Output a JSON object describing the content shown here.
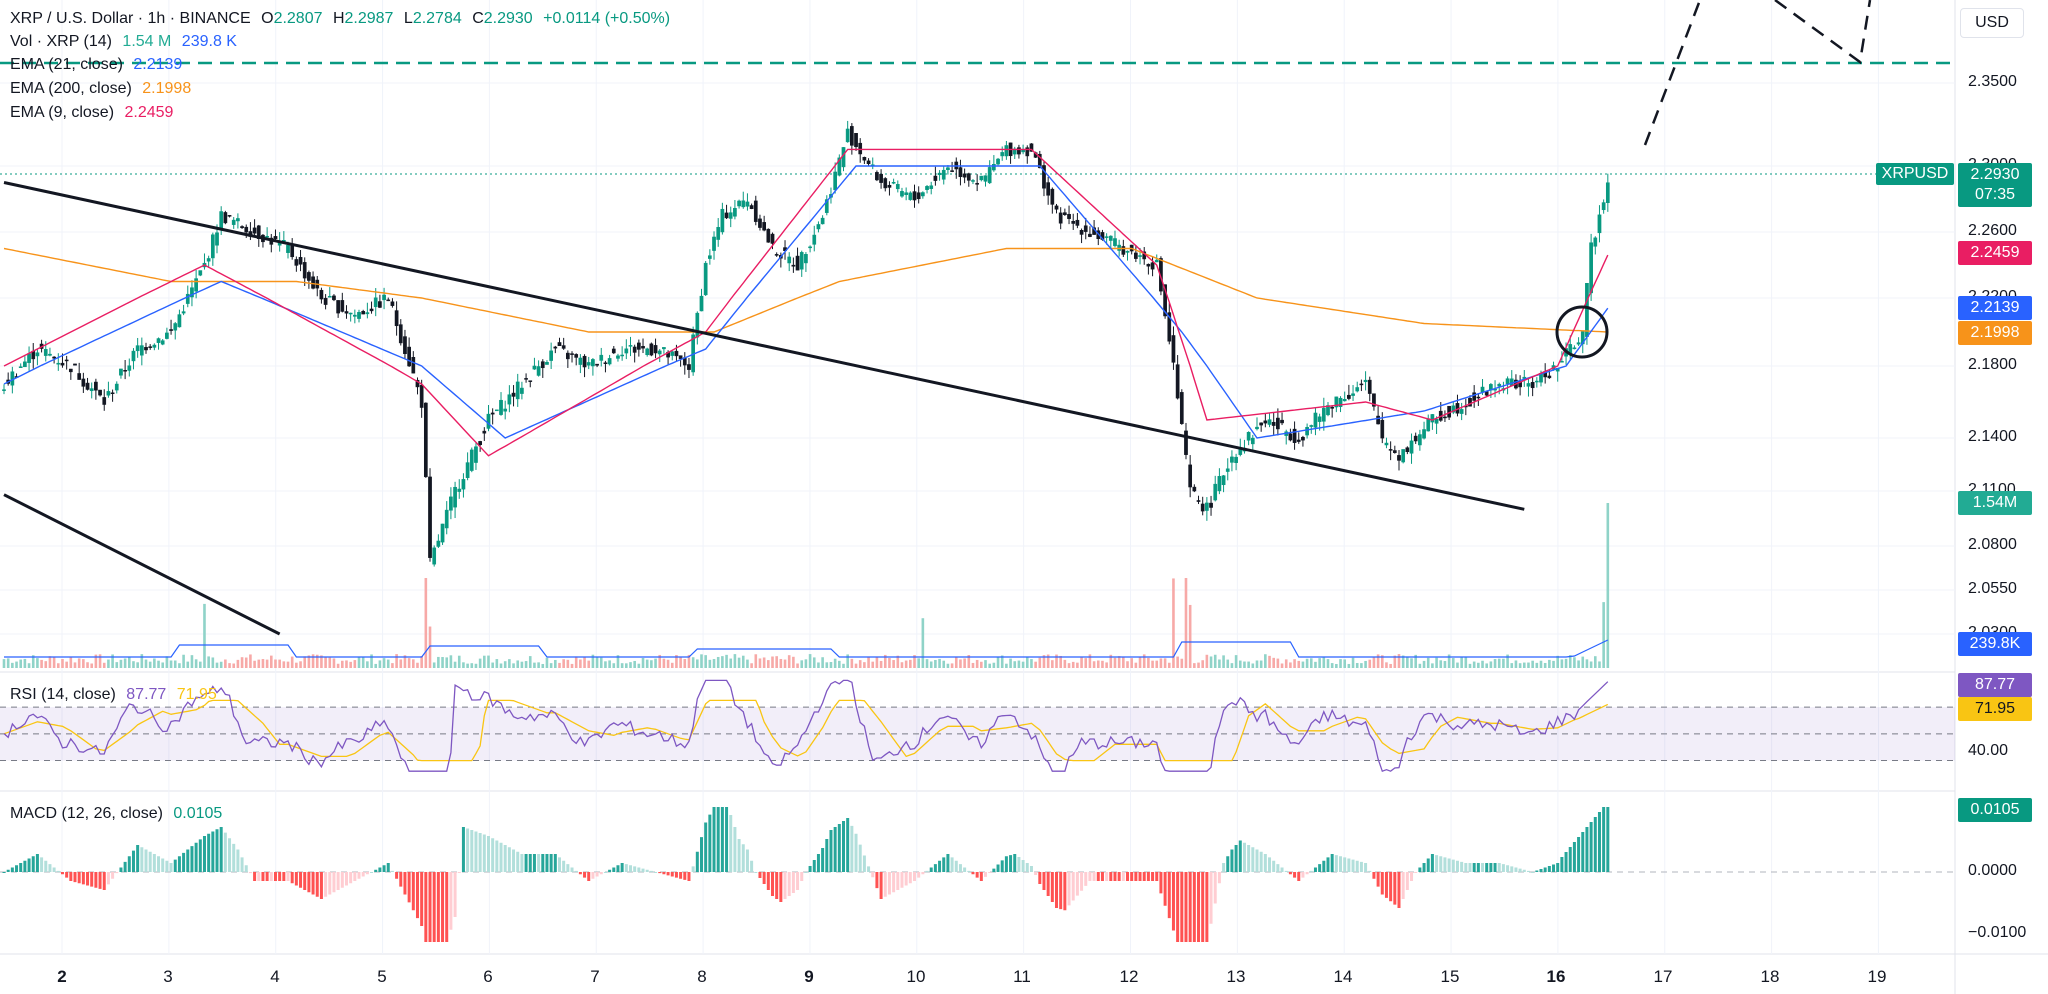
{
  "header": {
    "symbol_title": "XRP / U.S. Dollar · 1h · BINANCE",
    "o_label": "O",
    "o_value": "2.2807",
    "h_label": "H",
    "h_value": "2.2987",
    "l_label": "L",
    "l_value": "2.2784",
    "c_label": "C",
    "c_value": "2.2930",
    "change": "+0.0114 (+0.50%)"
  },
  "indicators": [
    {
      "label": "Vol · XRP (14)",
      "value1": "1.54 M",
      "value2": "239.8 K",
      "color1": "#22ab94",
      "color2": "#2962ff"
    },
    {
      "label": "EMA (21, close)",
      "value": "2.2139",
      "color": "#2962ff"
    },
    {
      "label": "EMA (200, close)",
      "value": "2.1998",
      "color": "#f7931a"
    },
    {
      "label": "EMA (9, close)",
      "value": "2.2459",
      "color": "#e91e63"
    }
  ],
  "rsi": {
    "label": "RSI (14, close)",
    "value": "87.77",
    "ma": "71.95",
    "color": "#7e57c2",
    "ma_color": "#f9c513"
  },
  "macd": {
    "label": "MACD (12, 26, close)",
    "value": "0.0105",
    "color": "#089981"
  },
  "currency": "USD",
  "ticker": "XRPUSD",
  "price_axis": [
    "2.3500",
    "2.3000",
    "2.2600",
    "2.2200",
    "2.1800",
    "2.1400",
    "2.1100",
    "2.0800",
    "2.0550",
    "2.0300"
  ],
  "price_badges": {
    "last": "2.2930",
    "countdown": "07:35",
    "ema9": "2.2459",
    "ema21": "2.2139",
    "ema200": "2.1998",
    "vol": "1.54M",
    "vol_ma": "239.8K"
  },
  "rsi_axis": {
    "upper_badge": "87.77",
    "ma_badge": "71.95",
    "level": "40.00"
  },
  "macd_axis": {
    "badge": "0.0105",
    "zero": "0.0000",
    "neg": "−0.0100"
  },
  "time_axis": [
    "2",
    "3",
    "4",
    "5",
    "6",
    "7",
    "8",
    "9",
    "10",
    "11",
    "12",
    "13",
    "14",
    "15",
    "16",
    "17",
    "18",
    "19"
  ],
  "time_axis_bold": [
    "2",
    "9",
    "16"
  ],
  "colors": {
    "up": "#089981",
    "down": "#f23645",
    "ema9": "#e91e63",
    "ema21": "#2962ff",
    "ema200": "#f7931a",
    "resistance": "#089981"
  },
  "chart_data": {
    "type": "candlestick",
    "title": "XRP / U.S. Dollar · 1h · BINANCE",
    "ylim": [
      2.03,
      2.36
    ],
    "resistance_level": 2.358,
    "close_path": [
      [
        0,
        2.17
      ],
      [
        8,
        2.19
      ],
      [
        16,
        2.18
      ],
      [
        24,
        2.16
      ],
      [
        32,
        2.19
      ],
      [
        40,
        2.2
      ],
      [
        48,
        2.24
      ],
      [
        52,
        2.27
      ],
      [
        60,
        2.26
      ],
      [
        68,
        2.25
      ],
      [
        76,
        2.22
      ],
      [
        84,
        2.21
      ],
      [
        92,
        2.22
      ],
      [
        96,
        2.19
      ],
      [
        100,
        2.16
      ],
      [
        102,
        2.07
      ],
      [
        108,
        2.11
      ],
      [
        116,
        2.15
      ],
      [
        124,
        2.17
      ],
      [
        132,
        2.19
      ],
      [
        140,
        2.18
      ],
      [
        148,
        2.19
      ],
      [
        156,
        2.19
      ],
      [
        164,
        2.18
      ],
      [
        168,
        2.24
      ],
      [
        172,
        2.27
      ],
      [
        178,
        2.28
      ],
      [
        184,
        2.25
      ],
      [
        190,
        2.24
      ],
      [
        196,
        2.27
      ],
      [
        202,
        2.32
      ],
      [
        210,
        2.29
      ],
      [
        218,
        2.28
      ],
      [
        226,
        2.3
      ],
      [
        234,
        2.29
      ],
      [
        240,
        2.31
      ],
      [
        246,
        2.31
      ],
      [
        252,
        2.27
      ],
      [
        260,
        2.26
      ],
      [
        268,
        2.25
      ],
      [
        276,
        2.24
      ],
      [
        280,
        2.18
      ],
      [
        284,
        2.11
      ],
      [
        288,
        2.1
      ],
      [
        294,
        2.13
      ],
      [
        302,
        2.15
      ],
      [
        310,
        2.14
      ],
      [
        318,
        2.16
      ],
      [
        326,
        2.17
      ],
      [
        330,
        2.14
      ],
      [
        334,
        2.13
      ],
      [
        342,
        2.15
      ],
      [
        350,
        2.16
      ],
      [
        358,
        2.17
      ],
      [
        366,
        2.17
      ],
      [
        372,
        2.18
      ],
      [
        378,
        2.2
      ],
      [
        380,
        2.25
      ],
      [
        382,
        2.27
      ],
      [
        384,
        2.293
      ]
    ],
    "ema9_path": [
      [
        0,
        2.18
      ],
      [
        48,
        2.24
      ],
      [
        100,
        2.17
      ],
      [
        116,
        2.13
      ],
      [
        168,
        2.2
      ],
      [
        202,
        2.31
      ],
      [
        246,
        2.31
      ],
      [
        276,
        2.24
      ],
      [
        288,
        2.15
      ],
      [
        326,
        2.16
      ],
      [
        342,
        2.15
      ],
      [
        372,
        2.18
      ],
      [
        384,
        2.246
      ]
    ],
    "ema21_path": [
      [
        0,
        2.17
      ],
      [
        52,
        2.23
      ],
      [
        100,
        2.18
      ],
      [
        120,
        2.14
      ],
      [
        168,
        2.19
      ],
      [
        204,
        2.3
      ],
      [
        248,
        2.3
      ],
      [
        282,
        2.2
      ],
      [
        300,
        2.14
      ],
      [
        340,
        2.155
      ],
      [
        374,
        2.18
      ],
      [
        384,
        2.214
      ]
    ],
    "ema200_path": [
      [
        0,
        2.25
      ],
      [
        40,
        2.23
      ],
      [
        70,
        2.23
      ],
      [
        100,
        2.22
      ],
      [
        140,
        2.2
      ],
      [
        170,
        2.2
      ],
      [
        200,
        2.23
      ],
      [
        240,
        2.25
      ],
      [
        270,
        2.25
      ],
      [
        300,
        2.22
      ],
      [
        340,
        2.205
      ],
      [
        384,
        2.2
      ]
    ],
    "trendlines": [
      {
        "from": [
          0,
          2.29
        ],
        "to": [
          364,
          2.1
        ]
      },
      {
        "from": [
          0,
          2.108
        ],
        "to": [
          66,
          2.03
        ]
      }
    ],
    "volume_badges": [
      "1.54M",
      "239.8K"
    ],
    "rsi_levels": [
      70,
      50,
      30
    ],
    "rsi_last": 87.77,
    "rsi_ma_last": 71.95,
    "macd_last": 0.0105
  }
}
